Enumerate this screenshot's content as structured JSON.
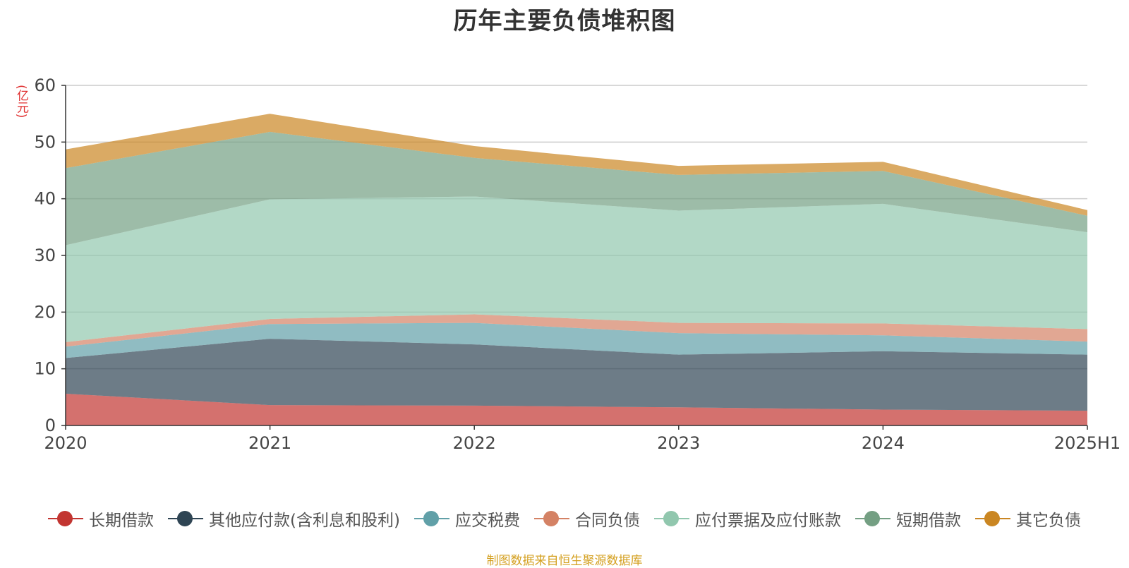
{
  "chart_data": {
    "type": "area",
    "stacked": true,
    "title": "历年主要负债堆积图",
    "y_unit": "(亿元)",
    "x": [
      "2020",
      "2021",
      "2022",
      "2023",
      "2024",
      "2025H1"
    ],
    "ylim": [
      0,
      60
    ],
    "yticks": [
      "0",
      "10",
      "20",
      "30",
      "40",
      "50",
      "60"
    ],
    "grid": true,
    "legend_position": "bottom",
    "series": [
      {
        "name": "长期借款",
        "color": "#c23531",
        "values": [
          5.6,
          3.6,
          3.5,
          3.2,
          2.8,
          2.6
        ]
      },
      {
        "name": "其他应付款(含利息和股利)",
        "color": "#2f4554",
        "values": [
          6.3,
          11.7,
          10.8,
          9.3,
          10.3,
          9.9
        ]
      },
      {
        "name": "应交税费",
        "color": "#61a0a8",
        "values": [
          2.0,
          2.6,
          3.8,
          3.8,
          2.8,
          2.3
        ]
      },
      {
        "name": "合同负债",
        "color": "#d48265",
        "values": [
          0.8,
          0.9,
          1.5,
          1.8,
          2.1,
          2.2
        ]
      },
      {
        "name": "应付票据及应付账款",
        "color": "#91c7ae",
        "values": [
          17.1,
          21.1,
          20.8,
          19.8,
          21.1,
          17.1
        ]
      },
      {
        "name": "短期借款",
        "color": "#749f83",
        "values": [
          13.6,
          11.9,
          6.8,
          6.3,
          5.8,
          2.9
        ]
      },
      {
        "name": "其它负债",
        "color": "#ca8622",
        "values": [
          3.3,
          3.2,
          2.1,
          1.6,
          1.6,
          1.0
        ]
      }
    ]
  },
  "footer": {
    "source_text": "制图数据来自恒生聚源数据库"
  }
}
